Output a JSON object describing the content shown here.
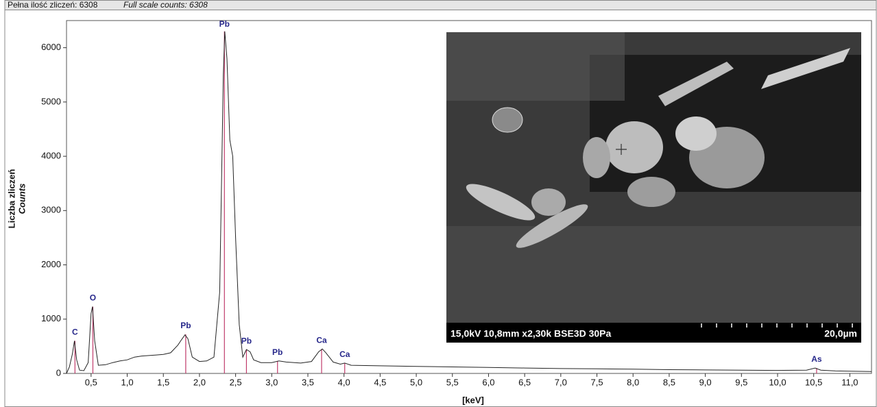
{
  "header": {
    "counts_pl": "Pełna ilość zliczeń: 6308",
    "counts_en": "Full scale counts: 6308"
  },
  "chart_data": {
    "type": "line",
    "x_label": "[keV]",
    "y_label": "Liczba zliczeń",
    "y_label_en": "Counts",
    "color": "#222222",
    "peak_color": "#c03a6a",
    "xlim": [
      0.16,
      11.3
    ],
    "ylim": [
      0,
      6500
    ],
    "xticks": [
      {
        "value": 0.5,
        "label": "0,5"
      },
      {
        "value": 1.0,
        "label": "1,0"
      },
      {
        "value": 1.5,
        "label": "1,5"
      },
      {
        "value": 2.0,
        "label": "2,0"
      },
      {
        "value": 2.5,
        "label": "2,5"
      },
      {
        "value": 3.0,
        "label": "3,0"
      },
      {
        "value": 3.5,
        "label": "3,5"
      },
      {
        "value": 4.0,
        "label": "4,0"
      },
      {
        "value": 4.5,
        "label": "4,5"
      },
      {
        "value": 5.0,
        "label": "5,0"
      },
      {
        "value": 5.5,
        "label": "5,5"
      },
      {
        "value": 6.0,
        "label": "6,0"
      },
      {
        "value": 6.5,
        "label": "6,5"
      },
      {
        "value": 7.0,
        "label": "7,0"
      },
      {
        "value": 7.5,
        "label": "7,5"
      },
      {
        "value": 8.0,
        "label": "8,0"
      },
      {
        "value": 8.5,
        "label": "8,5"
      },
      {
        "value": 9.0,
        "label": "9,0"
      },
      {
        "value": 9.5,
        "label": "9,5"
      },
      {
        "value": 10.0,
        "label": "10,0"
      },
      {
        "value": 10.5,
        "label": "10,5"
      },
      {
        "value": 11.0,
        "label": "11,0"
      }
    ],
    "yticks": [
      0,
      1000,
      2000,
      3000,
      4000,
      5000,
      6000
    ],
    "x": [
      0.16,
      0.2,
      0.24,
      0.27,
      0.3,
      0.34,
      0.4,
      0.46,
      0.5,
      0.52,
      0.55,
      0.6,
      0.7,
      0.8,
      0.9,
      1.0,
      1.1,
      1.2,
      1.3,
      1.4,
      1.5,
      1.6,
      1.7,
      1.75,
      1.8,
      1.84,
      1.9,
      2.0,
      2.1,
      2.2,
      2.28,
      2.33,
      2.35,
      2.38,
      2.42,
      2.46,
      2.5,
      2.55,
      2.6,
      2.65,
      2.7,
      2.75,
      2.85,
      3.0,
      3.1,
      3.2,
      3.4,
      3.55,
      3.65,
      3.7,
      3.75,
      3.85,
      3.95,
      4.01,
      4.1,
      4.5,
      5.0,
      5.5,
      6.0,
      6.5,
      7.0,
      7.5,
      8.0,
      8.5,
      9.0,
      9.5,
      10.0,
      10.4,
      10.52,
      10.6,
      10.8,
      11.0,
      11.3
    ],
    "values": [
      0,
      120,
      350,
      600,
      250,
      60,
      50,
      200,
      1100,
      1230,
      600,
      150,
      160,
      200,
      230,
      250,
      300,
      320,
      330,
      340,
      350,
      380,
      520,
      620,
      710,
      640,
      300,
      220,
      230,
      300,
      1500,
      5500,
      6300,
      5800,
      4300,
      4000,
      2500,
      900,
      300,
      440,
      400,
      250,
      200,
      200,
      230,
      210,
      190,
      220,
      400,
      450,
      380,
      210,
      170,
      190,
      150,
      140,
      130,
      120,
      110,
      100,
      90,
      85,
      80,
      70,
      65,
      60,
      55,
      60,
      100,
      60,
      45,
      40,
      35
    ],
    "peaks": [
      {
        "label": "C",
        "x": 0.277,
        "y": 600
      },
      {
        "label": "O",
        "x": 0.525,
        "y": 1230
      },
      {
        "label": "Pb",
        "x": 1.81,
        "y": 720
      },
      {
        "label": "Pb",
        "x": 2.345,
        "y": 6300
      },
      {
        "label": "Pb",
        "x": 2.65,
        "y": 440
      },
      {
        "label": "Pb",
        "x": 3.08,
        "y": 230
      },
      {
        "label": "Ca",
        "x": 3.69,
        "y": 450
      },
      {
        "label": "Ca",
        "x": 4.01,
        "y": 190
      },
      {
        "label": "As",
        "x": 10.54,
        "y": 100
      }
    ]
  },
  "inset": {
    "caption": "15,0kV 10,8mm x2,30k BSE3D 30Pa",
    "scale": "20,0µm"
  }
}
